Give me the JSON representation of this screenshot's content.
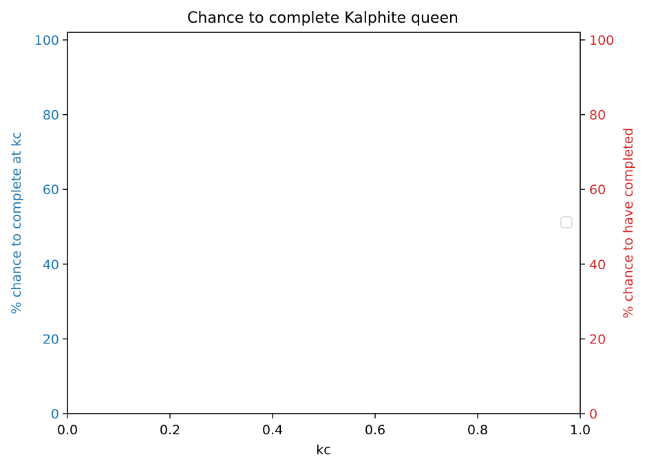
{
  "chart_data": {
    "type": "line",
    "title": "Chance to complete Kalphite queen",
    "xlabel": "kc",
    "ylabel_left": "% chance to complete at kc",
    "ylabel_right": "% chance to have completed",
    "xlim": [
      0.0,
      1.0
    ],
    "ylim_left": [
      0,
      100
    ],
    "ylim_right": [
      0,
      100
    ],
    "x_ticks": [
      "0.0",
      "0.2",
      "0.4",
      "0.6",
      "0.8",
      "1.0"
    ],
    "y_ticks_left": [
      "0",
      "20",
      "40",
      "60",
      "80",
      "100"
    ],
    "y_ticks_right": [
      "0",
      "20",
      "40",
      "60",
      "80",
      "100"
    ],
    "series": [],
    "grid": false,
    "legend": "center-right",
    "colors": {
      "left_axis": "#1f77b4",
      "right_axis": "#d62728",
      "frame": "#000000",
      "legend_border": "#cccccc"
    }
  }
}
